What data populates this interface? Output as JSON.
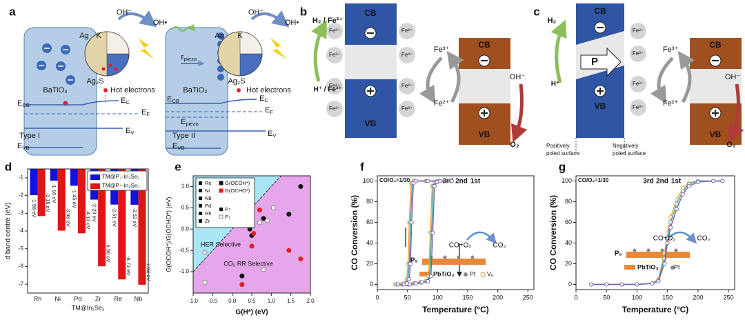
{
  "panel_labels": [
    "a",
    "b",
    "c",
    "d",
    "e",
    "f",
    "g"
  ],
  "panel_a": {
    "ag": "Ag",
    "k": "K",
    "oh_minus": "OH⁻",
    "oh_radical": "OH•",
    "ag2s": "Ag₂S",
    "batio3": "BaTiO₃",
    "hot_electrons": "Hot electrons",
    "e_cb": [
      "E",
      "CB"
    ],
    "e_c": [
      "E",
      "C"
    ],
    "e_f": [
      "E",
      "F"
    ],
    "e_v": [
      "E",
      "V"
    ],
    "e_vb": [
      "E",
      "VB"
    ],
    "type_1": "Type I",
    "type_2": "Type II",
    "epsilon_piezo": [
      "ε",
      "piezo"
    ],
    "e_piezo": [
      "E",
      "piezo"
    ]
  },
  "panel_b": {
    "h2_fe2": "H₂ / Fe²⁺",
    "h_fe3": "H⁺ / Fe³⁺",
    "cb": "CB",
    "vb": "VB",
    "fe2": "Fe²⁺",
    "fe3": "Fe³⁺",
    "oh_minus": "OH⁻",
    "o2": "O₂"
  },
  "panel_c": {
    "h2": "H₂",
    "h_plus": "H⁺",
    "p": "P",
    "cb": "CB",
    "vb": "VB",
    "fe2": "Fe²⁺",
    "fe3": "Fe³⁺",
    "oh_minus": "OH⁻",
    "o2": "O₂",
    "positive_surface": [
      "Positively",
      "poled surface"
    ],
    "negative_surface": [
      "Negatively",
      "poled surface"
    ]
  },
  "chart_data": [
    {
      "type": "bar",
      "ylabel": "d band centre (eV)",
      "xlabel": "TM@In₂Se₃",
      "categories": [
        "Rh",
        "Ni",
        "Pd",
        "Zr",
        "Re",
        "Nb"
      ],
      "series": [
        {
          "name": "TM@P↓-In₂Se₃",
          "color": "#1212dd",
          "values": [
            -1.98,
            -1.16,
            -1.45,
            -2.23,
            -2.51,
            -2.52
          ],
          "value_labels": [
            "-1.98 eV",
            "-1.16 eV",
            "-1.45 eV",
            "-2.23 eV",
            "-2.51 eV",
            "-2.52 eV"
          ]
        },
        {
          "name": "TM@P↑-In₂Se₃",
          "color": "#e01515",
          "values": [
            -3.16,
            -3.98,
            -4.13,
            -5.99,
            -6.73,
            -7.03
          ],
          "value_labels": [
            "-3.16 eV",
            "-3.98 eV",
            "-4.13 eV",
            "-5.99 eV",
            "-6.73 eV",
            "-7.03 eV"
          ]
        }
      ],
      "ylim": [
        -7.5,
        -0.5
      ],
      "yticks": [
        -1,
        -2,
        -3,
        -4,
        -5,
        -6,
        -7
      ],
      "legend": "upper right"
    },
    {
      "type": "scatter",
      "xlabel": "G(H*) (eV)",
      "ylabel": "G(OCOH*)/G(OCHO*) (eV)",
      "annotations": [
        "HER Selective",
        "CO₂ RR Selective"
      ],
      "metals": [
        "Re",
        "Ni",
        "Nb",
        "Pd",
        "Rh",
        "Zr"
      ],
      "filled_label": "P↑",
      "series": [
        {
          "name": "G(OCOH*)",
          "color": "#111111",
          "filled": true,
          "x": [
            1.75,
            1.45,
            0.45,
            0.5,
            0.25,
            0.8
          ],
          "values": [
            1.0,
            0.35,
            0.0,
            -0.15,
            -1.1,
            0.25
          ]
        },
        {
          "name": "G(OCHO*)",
          "color": "#e02020",
          "filled": true,
          "x": [
            0.7,
            0.5,
            1.45,
            1.75,
            0.25,
            0.55
          ],
          "values": [
            0.45,
            -0.4,
            -0.5,
            -0.7,
            -1.3,
            -0.1
          ]
        },
        {
          "name": "P↓",
          "color": "#888888",
          "filled": false,
          "x": [
            1.05,
            0.7,
            -0.7,
            -0.7,
            0.8,
            0.9
          ],
          "values": [
            0.5,
            0.15,
            -0.55,
            -1.25,
            -0.95,
            0.2
          ]
        }
      ],
      "xlim": [
        -1,
        2
      ],
      "xticks": [
        {
          "value": -1,
          "label": "-1.0"
        },
        -0.5,
        {
          "value": 0,
          "label": "0.0"
        },
        0.5,
        {
          "value": 1,
          "label": "1.0"
        },
        1.5,
        {
          "value": 2,
          "label": "2.0"
        }
      ],
      "ylim": [
        -1.5,
        1.25
      ],
      "yticks": [
        {
          "value": -1,
          "label": "-1.0"
        },
        -0.5,
        {
          "value": 0,
          "label": "0.0"
        },
        0.5,
        {
          "value": 1,
          "label": "1.0"
        }
      ]
    },
    {
      "type": "line",
      "annotation": "CO/O₂=1/30",
      "xlabel": "Temperature (°C)",
      "ylabel": "CO Conversion (%)",
      "xlim": [
        0,
        260
      ],
      "xticks": [
        0,
        50,
        100,
        150,
        200,
        250
      ],
      "ylim": [
        -5,
        105
      ],
      "yticks": [
        0,
        20,
        40,
        60,
        80,
        100
      ],
      "series": [
        {
          "name": "3rd",
          "color": "#f0a040",
          "x": [
            30,
            40,
            50,
            60,
            70,
            80,
            85,
            88,
            91,
            95,
            100,
            120,
            100,
            80,
            60,
            56,
            53,
            51,
            49,
            45,
            40,
            30
          ],
          "values": [
            0,
            0,
            0,
            1,
            2,
            3,
            8,
            50,
            95,
            99,
            100,
            100,
            100,
            100,
            100,
            98,
            60,
            20,
            5,
            1,
            0,
            0
          ]
        },
        {
          "name": "2nd",
          "color": "#3aa6a0",
          "x": [
            32,
            42,
            52,
            62,
            72,
            82,
            87,
            90,
            93,
            97,
            102,
            122,
            102,
            82,
            62,
            58,
            55,
            53,
            51,
            47,
            42,
            32
          ],
          "values": [
            0,
            0,
            0,
            1,
            2,
            3,
            8,
            50,
            95,
            99,
            100,
            100,
            100,
            100,
            100,
            98,
            60,
            20,
            5,
            1,
            0,
            0
          ]
        },
        {
          "name": "1st",
          "color": "#8060b0",
          "x": [
            34,
            44,
            54,
            64,
            74,
            84,
            89,
            92,
            95,
            99,
            104,
            124,
            104,
            84,
            64,
            60,
            57,
            55,
            53,
            49,
            44,
            34
          ],
          "values": [
            0,
            0,
            0,
            1,
            2,
            3,
            8,
            50,
            95,
            99,
            100,
            100,
            100,
            100,
            100,
            98,
            60,
            20,
            5,
            1,
            0,
            0
          ]
        }
      ],
      "inset": {
        "reactants": "CO+O₂",
        "product": "CO₂",
        "substrate": "PbTiO₃",
        "polarization": "Pₛ",
        "legend": [
          "Pt",
          "Vₒ"
        ]
      }
    },
    {
      "type": "line",
      "annotation": "CO/O₂=1/30",
      "xlabel": "Temperature (°C)",
      "ylabel": "CO Conversion (%)",
      "xlim": [
        0,
        260
      ],
      "xticks": [
        0,
        50,
        100,
        150,
        200,
        250
      ],
      "ylim": [
        -5,
        105
      ],
      "yticks": [
        0,
        20,
        40,
        60,
        80,
        100
      ],
      "series": [
        {
          "name": "3rd",
          "color": "#f0a040",
          "x": [
            25,
            50,
            75,
            100,
            125,
            135,
            145,
            150,
            155,
            165,
            175,
            185,
            200,
            225,
            240
          ],
          "values": [
            0,
            0,
            0,
            0,
            1,
            5,
            30,
            50,
            65,
            82,
            93,
            98,
            100,
            100,
            100
          ]
        },
        {
          "name": "2nd",
          "color": "#3aa6a0",
          "x": [
            25,
            50,
            75,
            100,
            125,
            135,
            145,
            150,
            155,
            165,
            175,
            185,
            200,
            225,
            240
          ],
          "values": [
            0,
            0,
            0,
            0,
            1,
            4,
            25,
            45,
            60,
            78,
            90,
            97,
            100,
            100,
            100
          ]
        },
        {
          "name": "1st",
          "color": "#8060b0",
          "x": [
            25,
            50,
            75,
            100,
            125,
            135,
            145,
            150,
            155,
            165,
            175,
            185,
            200,
            225,
            240
          ],
          "values": [
            0,
            0,
            0,
            0,
            1,
            3,
            20,
            40,
            55,
            73,
            87,
            95,
            99,
            100,
            100
          ]
        }
      ],
      "inset": {
        "reactants": "CO+O₂",
        "product": "CO₂",
        "substrate": "PbTiO₃",
        "polarization": "Pₛ",
        "legend": [
          "Pt"
        ]
      }
    }
  ]
}
